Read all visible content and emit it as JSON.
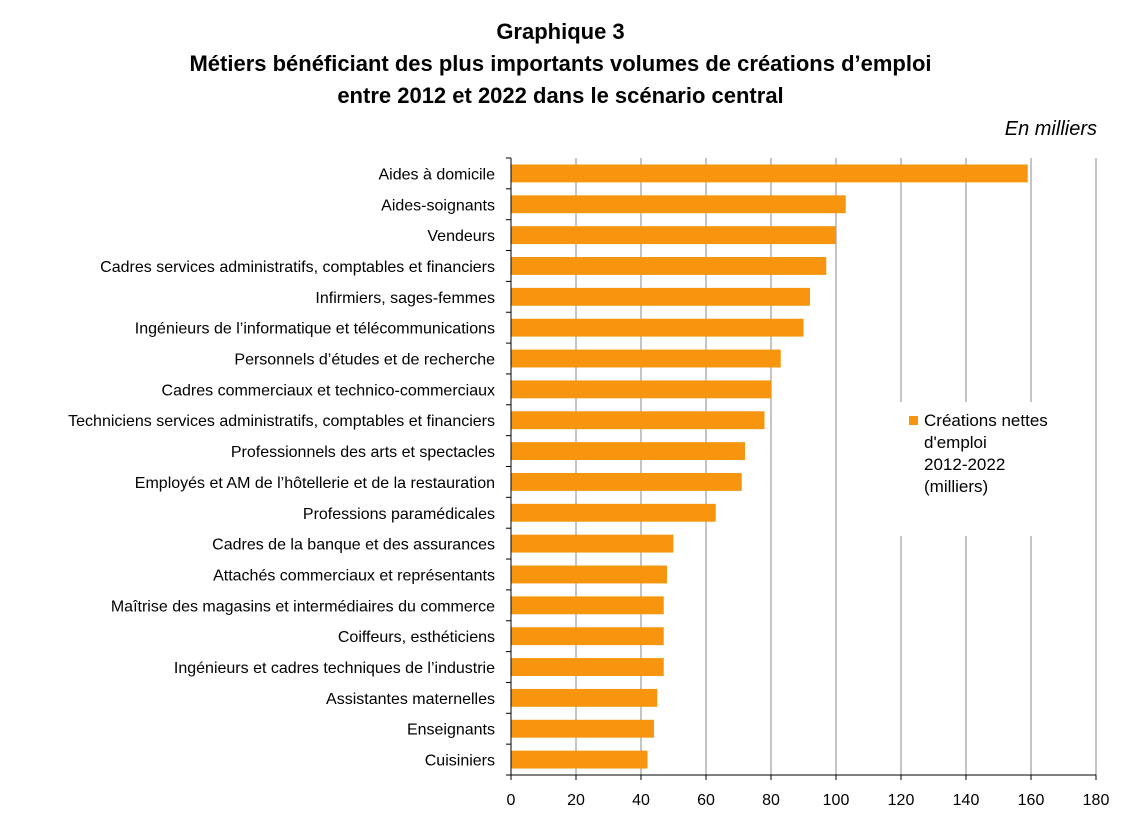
{
  "header": {
    "line1": "Graphique 3",
    "line2": "Métiers bénéficiant des plus importants volumes de créations d’emploi",
    "line3": "entre 2012 et 2022 dans le scénario central"
  },
  "unit_label": "En milliers",
  "legend": {
    "lines": [
      "Créations nettes",
      "d'emploi",
      "2012-2022",
      "(milliers)"
    ]
  },
  "colors": {
    "bar": "#F7960E",
    "grid": "#888888",
    "axis": "#000000"
  },
  "chart_data": {
    "type": "bar",
    "orientation": "horizontal",
    "categories": [
      "Aides à domicile",
      "Aides-soignants",
      "Vendeurs",
      "Cadres services administratifs, comptables et financiers",
      "Infirmiers, sages-femmes",
      "Ingénieurs de l’informatique et télécommunications",
      "Personnels d’études et de recherche",
      "Cadres commerciaux et technico-commerciaux",
      "Techniciens services administratifs, comptables et financiers",
      "Professionnels des arts et spectacles",
      "Employés et AM de l’hôtellerie et de la restauration",
      "Professions paramédicales",
      "Cadres de la banque et des assurances",
      "Attachés commerciaux et représentants",
      "Maîtrise des magasins et intermédiaires du commerce",
      "Coiffeurs, esthéticiens",
      "Ingénieurs et cadres techniques de l’industrie",
      "Assistantes maternelles",
      "Enseignants",
      "Cuisiniers"
    ],
    "series": [
      {
        "name": "Créations nettes d'emploi 2012-2022 (milliers)",
        "values": [
          159,
          103,
          100,
          97,
          92,
          90,
          83,
          80,
          78,
          72,
          71,
          63,
          50,
          48,
          47,
          47,
          47,
          45,
          44,
          42
        ]
      }
    ],
    "xlim": [
      0,
      180
    ],
    "xticks": [
      0,
      20,
      40,
      60,
      80,
      100,
      120,
      140,
      160,
      180
    ],
    "grid": "vertical",
    "legend_position": "right"
  }
}
